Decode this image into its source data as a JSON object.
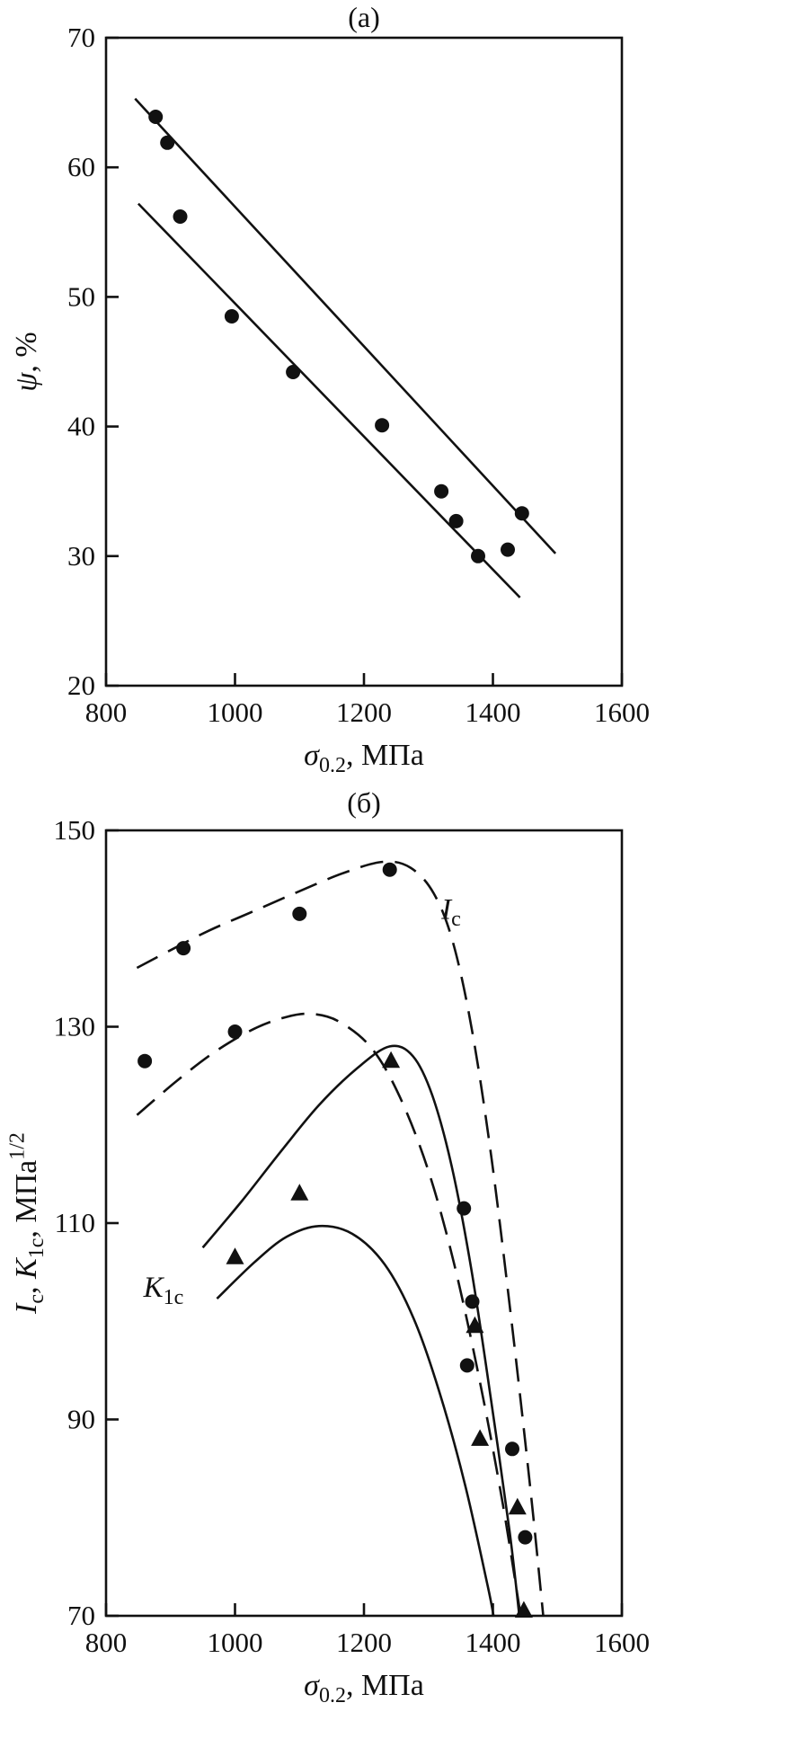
{
  "style": {
    "ink": "#111111",
    "background": "#ffffff"
  },
  "chart_data": [
    {
      "type": "scatter",
      "panel": "a",
      "title": "(а)",
      "xlabel_text": "σ0.2, МПа",
      "ylabel_text": "ψ, %",
      "xlabel_segments": [
        {
          "t": "σ",
          "i": 1
        },
        {
          "t": "0.2",
          "sub": 1
        },
        {
          "t": ", МПа"
        }
      ],
      "ylabel_segments": [
        {
          "t": "ψ",
          "i": 1
        },
        {
          "t": ", %"
        }
      ],
      "xlim": [
        800,
        1600
      ],
      "ylim": [
        20,
        70
      ],
      "xticks": [
        800,
        1000,
        1200,
        1400,
        1600
      ],
      "yticks": [
        20,
        30,
        40,
        50,
        60,
        70
      ],
      "grid": false,
      "legend": "none",
      "series": [
        {
          "name": "upper-trend-line",
          "kind": "line",
          "style": "solid",
          "points": [
            [
              845,
              65.3
            ],
            [
              1497,
              30.2
            ]
          ]
        },
        {
          "name": "lower-trend-line",
          "kind": "line",
          "style": "solid",
          "points": [
            [
              850,
              57.2
            ],
            [
              1442,
              26.8
            ]
          ]
        },
        {
          "name": "reduction-of-area-data",
          "kind": "scatter",
          "marker": "circle",
          "points": [
            [
              877,
              63.9
            ],
            [
              895,
              61.9
            ],
            [
              915,
              56.2
            ],
            [
              995,
              48.5
            ],
            [
              1090,
              44.2
            ],
            [
              1228,
              40.1
            ],
            [
              1320,
              35.0
            ],
            [
              1343,
              32.7
            ],
            [
              1377,
              30.0
            ],
            [
              1423,
              30.5
            ],
            [
              1445,
              33.3
            ]
          ]
        }
      ],
      "annotations": []
    },
    {
      "type": "scatter",
      "panel": "b",
      "title": "(б)",
      "xlabel_text": "σ0.2, МПа",
      "ylabel_text": "Ic, K1c, МПа1/2",
      "xlabel_segments": [
        {
          "t": "σ",
          "i": 1
        },
        {
          "t": "0.2",
          "sub": 1
        },
        {
          "t": ", МПа"
        }
      ],
      "ylabel_segments": [
        {
          "t": "I",
          "i": 1
        },
        {
          "t": "c",
          "sub": 1
        },
        {
          "t": ", "
        },
        {
          "t": "K",
          "i": 1
        },
        {
          "t": "1c",
          "sub": 1
        },
        {
          "t": ",  МПа"
        },
        {
          "t": "1/2",
          "sup": 1
        }
      ],
      "xlim": [
        800,
        1600
      ],
      "ylim": [
        70,
        150
      ],
      "xticks": [
        800,
        1000,
        1200,
        1400,
        1600
      ],
      "yticks": [
        70,
        90,
        110,
        130,
        150
      ],
      "grid": false,
      "legend": "none",
      "series": [
        {
          "name": "Ic-upper-band-curve",
          "kind": "curve",
          "style": "dashed",
          "points": [
            [
              848,
              136
            ],
            [
              900,
              137.8
            ],
            [
              960,
              139.8
            ],
            [
              1030,
              141.8
            ],
            [
              1100,
              143.8
            ],
            [
              1170,
              145.7
            ],
            [
              1230,
              146.8
            ],
            [
              1272,
              146.2
            ],
            [
              1308,
              143.6
            ],
            [
              1338,
              138.6
            ],
            [
              1368,
              129.5
            ],
            [
              1398,
              116.5
            ],
            [
              1428,
              100.5
            ],
            [
              1458,
              83
            ],
            [
              1478,
              70
            ]
          ]
        },
        {
          "name": "Ic-lower-band-curve",
          "kind": "curve",
          "style": "dashed",
          "points": [
            [
              848,
              121
            ],
            [
              910,
              124.5
            ],
            [
              970,
              127.5
            ],
            [
              1030,
              129.8
            ],
            [
              1080,
              131
            ],
            [
              1120,
              131.3
            ],
            [
              1162,
              130.5
            ],
            [
              1212,
              127.8
            ],
            [
              1256,
              122.8
            ],
            [
              1300,
              115.3
            ],
            [
              1340,
              105.8
            ],
            [
              1380,
              93.8
            ],
            [
              1415,
              81.5
            ],
            [
              1443,
              70
            ]
          ]
        },
        {
          "name": "K1c-upper-band-curve",
          "kind": "curve",
          "style": "solid",
          "points": [
            [
              950,
              107.5
            ],
            [
              1010,
              112.2
            ],
            [
              1070,
              117.2
            ],
            [
              1130,
              122
            ],
            [
              1190,
              125.8
            ],
            [
              1240,
              128
            ],
            [
              1276,
              127
            ],
            [
              1306,
              123
            ],
            [
              1336,
              115.8
            ],
            [
              1366,
              105.5
            ],
            [
              1396,
              92.5
            ],
            [
              1426,
              78.5
            ],
            [
              1441,
              70
            ]
          ]
        },
        {
          "name": "K1c-lower-band-curve",
          "kind": "curve",
          "style": "solid",
          "points": [
            [
              972,
              102.3
            ],
            [
              1030,
              106
            ],
            [
              1080,
              108.6
            ],
            [
              1130,
              109.7
            ],
            [
              1182,
              108.9
            ],
            [
              1232,
              105.8
            ],
            [
              1277,
              100.3
            ],
            [
              1317,
              92.8
            ],
            [
              1357,
              83.3
            ],
            [
              1392,
              73
            ],
            [
              1401,
              70
            ]
          ]
        },
        {
          "name": "Ic-data",
          "kind": "scatter",
          "marker": "circle",
          "points": [
            [
              860,
              126.5
            ],
            [
              920,
              138
            ],
            [
              1000,
              129.5
            ],
            [
              1100,
              141.5
            ],
            [
              1240,
              146
            ],
            [
              1355,
              111.5
            ],
            [
              1368,
              102
            ],
            [
              1360,
              95.5
            ],
            [
              1430,
              87
            ],
            [
              1450,
              78
            ]
          ]
        },
        {
          "name": "K1c-data",
          "kind": "scatter",
          "marker": "triangle",
          "points": [
            [
              1000,
              106.5
            ],
            [
              1100,
              113
            ],
            [
              1242,
              126.5
            ],
            [
              1372,
              99.5
            ],
            [
              1380,
              88
            ],
            [
              1438,
              81
            ],
            [
              1448,
              70.5
            ]
          ]
        }
      ],
      "annotations": [
        {
          "name": "Ic-curve-label",
          "x": 1320,
          "y": 141,
          "segments": [
            {
              "t": "I",
              "i": 1
            },
            {
              "t": "c",
              "sub": 1
            }
          ]
        },
        {
          "name": "K1c-curve-label",
          "x": 858,
          "y": 102.5,
          "segments": [
            {
              "t": "K",
              "i": 1
            },
            {
              "t": "1c",
              "sub": 1
            }
          ]
        }
      ]
    }
  ]
}
